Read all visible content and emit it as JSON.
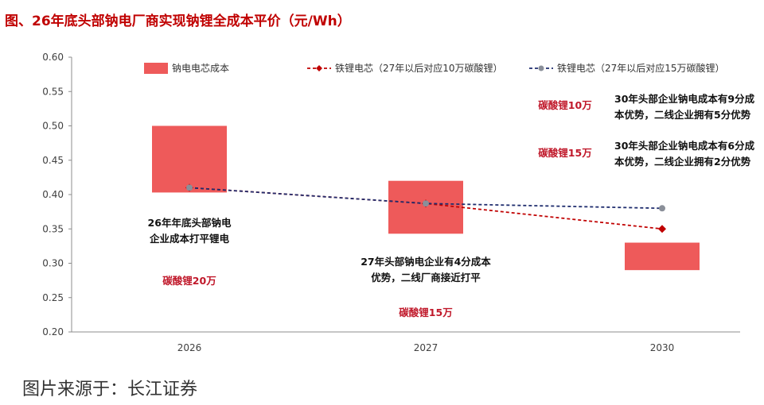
{
  "title": "图、26年底头部钠电厂商实现钠锂全成本平价（元/Wh）",
  "source": "图片来源于：长江证券",
  "chart_data": {
    "type": "bar+line",
    "categories": [
      "2026",
      "2027",
      "2030"
    ],
    "ylim": [
      0.2,
      0.6
    ],
    "yticks": [
      "0.20",
      "0.25",
      "0.30",
      "0.35",
      "0.40",
      "0.45",
      "0.50",
      "0.55",
      "0.60"
    ],
    "bars": {
      "name": "钠电电芯成本",
      "color": "#ee5a5a",
      "ranges": [
        [
          0.403,
          0.5
        ],
        [
          0.343,
          0.42
        ],
        [
          0.29,
          0.33
        ]
      ]
    },
    "series": [
      {
        "name": "铁锂电芯（27年以后对应10万碳酸锂）",
        "color": "#c00000",
        "marker": "diamond",
        "values": [
          0.41,
          0.387,
          0.35
        ]
      },
      {
        "name": "铁锂电芯（27年以后对应15万碳酸锂）",
        "color": "#1f2d6e",
        "marker": "circle",
        "values": [
          0.41,
          0.387,
          0.38
        ]
      }
    ],
    "annotations": [
      {
        "key": "a1",
        "lines": [
          "26年年底头部钠电",
          "企业成本打平锂电"
        ],
        "style": "black"
      },
      {
        "key": "a2",
        "lines": [
          "碳酸锂20万"
        ],
        "style": "red"
      },
      {
        "key": "a3",
        "lines": [
          "27年头部钠电企业有4分成本",
          "优势，二线厂商接近打平"
        ],
        "style": "black"
      },
      {
        "key": "a4",
        "lines": [
          "碳酸锂15万"
        ],
        "style": "red"
      },
      {
        "key": "a5",
        "lines": [
          "碳酸锂10万"
        ],
        "style": "red"
      },
      {
        "key": "a6",
        "lines": [
          "30年头部企业钠电成本有9分成",
          "本优势，二线企业拥有5分优势"
        ],
        "style": "black"
      },
      {
        "key": "a7",
        "lines": [
          "碳酸锂15万"
        ],
        "style": "red"
      },
      {
        "key": "a8",
        "lines": [
          "30年头部企业钠电成本有6分成",
          "本优势，二线企业拥有2分优势"
        ],
        "style": "black"
      }
    ]
  }
}
